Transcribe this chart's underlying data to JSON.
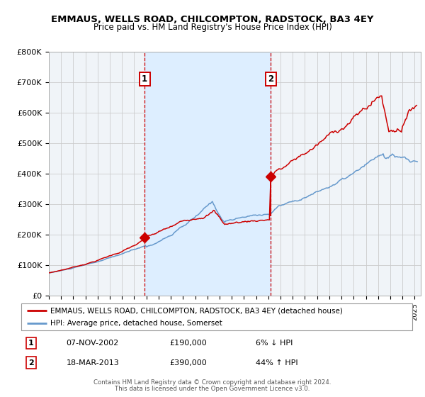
{
  "title": "EMMAUS, WELLS ROAD, CHILCOMPTON, RADSTOCK, BA3 4EY",
  "subtitle": "Price paid vs. HM Land Registry's House Price Index (HPI)",
  "legend_label_red": "EMMAUS, WELLS ROAD, CHILCOMPTON, RADSTOCK, BA3 4EY (detached house)",
  "legend_label_blue": "HPI: Average price, detached house, Somerset",
  "marker1_date": 2002.854,
  "marker1_price": 190000,
  "marker1_label": "1",
  "marker2_date": 2013.21,
  "marker2_price": 390000,
  "marker2_label": "2",
  "shade_start": 2002.854,
  "shade_end": 2013.21,
  "red_color": "#cc0000",
  "blue_color": "#6699cc",
  "shade_color": "#ddeeff",
  "grid_color": "#cccccc",
  "background_color": "#f0f4f8",
  "ylim": [
    0,
    800000
  ],
  "xlim": [
    1995.0,
    2025.5
  ],
  "row1_date": "07-NOV-2002",
  "row1_price": "£190,000",
  "row1_hpi": "6% ↓ HPI",
  "row2_date": "18-MAR-2013",
  "row2_price": "£390,000",
  "row2_hpi": "44% ↑ HPI",
  "footer_line1": "Contains HM Land Registry data © Crown copyright and database right 2024.",
  "footer_line2": "This data is licensed under the Open Government Licence v3.0."
}
